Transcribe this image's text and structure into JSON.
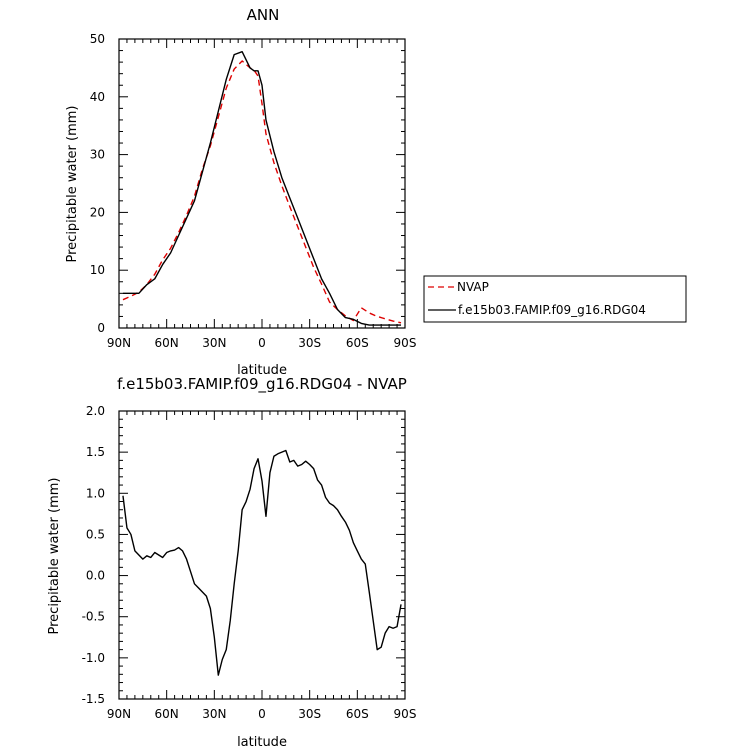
{
  "chart_data": [
    {
      "type": "line",
      "title": "ANN",
      "xlabel": "latitude",
      "ylabel": "Precipitable water (mm)",
      "xlim": [
        90,
        -90
      ],
      "ylim": [
        0,
        50
      ],
      "xticks": [
        90,
        60,
        30,
        0,
        -30,
        -60,
        -90
      ],
      "xtick_labels": [
        "90N",
        "60N",
        "30N",
        "0",
        "30S",
        "60S",
        "90S"
      ],
      "yticks": [
        0,
        10,
        20,
        30,
        40,
        50
      ],
      "ytick_labels": [
        "0",
        "10",
        "20",
        "30",
        "40",
        "50"
      ],
      "grid": false,
      "legend_position": "right",
      "series": [
        {
          "name": "NVAP",
          "color": "#dd0000",
          "dash": "dashed",
          "x": [
            87.5,
            82.5,
            77.5,
            72.5,
            67.5,
            62.5,
            57.5,
            52.5,
            47.5,
            42.5,
            37.5,
            32.5,
            27.5,
            22.5,
            17.5,
            12.5,
            7.5,
            5,
            2.5,
            0,
            -2.5,
            -7.5,
            -12.5,
            -17.5,
            -22.5,
            -27.5,
            -32.5,
            -37.5,
            -42.5,
            -47.5,
            -52.5,
            -57.5,
            -62.5,
            -67.5,
            -72.5,
            -77.5,
            -82.5,
            -87.5
          ],
          "y": [
            4.9,
            5.5,
            6.2,
            7.5,
            9.3,
            11.8,
            13.8,
            16.5,
            19.5,
            22.8,
            27.5,
            31.5,
            36.5,
            41.5,
            44.8,
            46.2,
            45.0,
            44.6,
            43.6,
            38.8,
            33.6,
            28.6,
            24.6,
            21.0,
            17.5,
            14.0,
            10.5,
            7.6,
            4.5,
            3.2,
            2.1,
            1.3,
            3.5,
            2.6,
            2.0,
            1.6,
            1.2,
            0.9
          ],
          "y_line": [
            5.0,
            5.6,
            6.3,
            7.7,
            9.4,
            12.0,
            14.0,
            16.8,
            20.0,
            23.5,
            28.0,
            32.5,
            37.5,
            42.5,
            45.9,
            46.3,
            45.0,
            44.2,
            43.6,
            39.0,
            34.0,
            29.0,
            25.0,
            21.5,
            18.0,
            14.5,
            11.0,
            8.0,
            5.5,
            3.5,
            2.8,
            2.0,
            1.5,
            1.2,
            0.9,
            0.7,
            0.6,
            0.5
          ]
        },
        {
          "name": "f.e15b03.FAMIP.f09_g16.RDG04",
          "color": "#000000",
          "dash": "solid",
          "x": [
            87.5,
            82.5,
            77.5,
            72.5,
            67.5,
            62.5,
            57.5,
            52.5,
            47.5,
            42.5,
            37.5,
            32.5,
            27.5,
            22.5,
            17.5,
            12.5,
            7.5,
            5,
            2.5,
            0,
            -2.5,
            -7.5,
            -12.5,
            -17.5,
            -22.5,
            -27.5,
            -32.5,
            -37.5,
            -42.5,
            -47.5,
            -52.5,
            -57.5,
            -62.5,
            -67.5,
            -72.5,
            -77.5,
            -82.5,
            -87.5
          ],
          "y": [
            6.0,
            6.0,
            6.0,
            7.5,
            8.5,
            11.0,
            13.0,
            16.0,
            19.0,
            22.0,
            27.0,
            32.0,
            37.5,
            43.0,
            47.3,
            47.8,
            45.0,
            44.5,
            44.5,
            42.0,
            36.0,
            30.5,
            26.0,
            22.5,
            19.0,
            15.5,
            12.0,
            8.5,
            6.0,
            3.2,
            1.8,
            1.5,
            0.8,
            0.5,
            0.5,
            0.5,
            0.5,
            0.5
          ]
        }
      ]
    },
    {
      "type": "line",
      "title": "f.e15b03.FAMIP.f09_g16.RDG04 - NVAP",
      "xlabel": "latitude",
      "ylabel": "Precipitable water (mm)",
      "xlim": [
        90,
        -90
      ],
      "ylim": [
        -1.5,
        2.0
      ],
      "xticks": [
        90,
        60,
        30,
        0,
        -30,
        -60,
        -90
      ],
      "xtick_labels": [
        "90N",
        "60N",
        "30N",
        "0",
        "30S",
        "60S",
        "90S"
      ],
      "yticks": [
        -1.5,
        -1.0,
        -0.5,
        0.0,
        0.5,
        1.0,
        1.5,
        2.0
      ],
      "ytick_labels": [
        "-1.5",
        "-1.0",
        "-0.5",
        "0.0",
        "0.5",
        "1.0",
        "1.5",
        "2.0"
      ],
      "grid": false,
      "series": [
        {
          "color": "#000000",
          "dash": "solid",
          "x": [
            87.5,
            85,
            82.5,
            80,
            77.5,
            75,
            72.5,
            70,
            67.5,
            65,
            62.5,
            60,
            57.5,
            55,
            52.5,
            50,
            47.5,
            45,
            42.5,
            40,
            37.5,
            35,
            32.5,
            30,
            27.5,
            25,
            22.5,
            20,
            17.5,
            15,
            12.5,
            10,
            7.5,
            5,
            2.5,
            0,
            -2.5,
            -5,
            -7.5,
            -10,
            -12.5,
            -15,
            -17.5,
            -20,
            -22.5,
            -25,
            -27.5,
            -30,
            -32.5,
            -35,
            -37.5,
            -40,
            -42.5,
            -45,
            -47.5,
            -50,
            -52.5,
            -55,
            -57.5,
            -60,
            -62.5,
            -65,
            -67.5,
            -70,
            -72.5,
            -75,
            -77.5,
            -80,
            -82.5,
            -85,
            -87.5
          ],
          "y": [
            0.97,
            0.58,
            0.5,
            0.3,
            0.25,
            0.2,
            0.24,
            0.22,
            0.28,
            0.25,
            0.22,
            0.28,
            0.3,
            0.31,
            0.34,
            0.3,
            0.2,
            0.05,
            -0.1,
            -0.15,
            -0.2,
            -0.25,
            -0.4,
            -0.75,
            -1.21,
            -1.02,
            -0.9,
            -0.55,
            -0.1,
            0.3,
            0.8,
            0.9,
            1.05,
            1.3,
            1.42,
            1.15,
            0.72,
            1.25,
            1.45,
            1.48,
            1.5,
            1.52,
            1.38,
            1.4,
            1.33,
            1.35,
            1.39,
            1.35,
            1.3,
            1.16,
            1.1,
            0.95,
            0.88,
            0.85,
            0.8,
            0.72,
            0.65,
            0.55,
            0.4,
            0.3,
            0.2,
            0.14,
            -0.2,
            -0.55,
            -0.9,
            -0.87,
            -0.7,
            -0.62,
            -0.64,
            -0.62,
            -0.35
          ]
        }
      ]
    }
  ],
  "legend": {
    "items": [
      {
        "label": "NVAP",
        "style": "dashed",
        "color": "#dd0000"
      },
      {
        "label": "f.e15b03.FAMIP.f09_g16.RDG04",
        "style": "solid",
        "color": "#000000"
      }
    ]
  }
}
